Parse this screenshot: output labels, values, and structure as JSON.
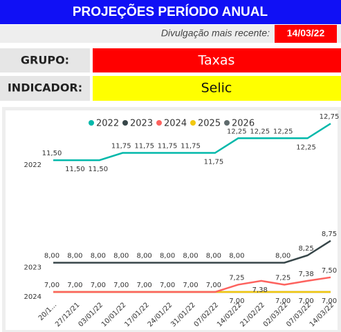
{
  "header": {
    "title": "PROJEÇÕES PERÍODO ANUAL"
  },
  "release": {
    "label": "Divulgação mais recente:",
    "date": "14/03/22"
  },
  "grupo": {
    "label": "GRUPO:",
    "value": "Taxas"
  },
  "indicador": {
    "label": "INDICADOR:",
    "value": "Selic"
  },
  "chart_data": {
    "type": "line",
    "categories": [
      "20/1...",
      "27/12/21",
      "03/01/22",
      "10/01/22",
      "17/01/22",
      "24/01/22",
      "31/01/22",
      "07/02/22",
      "14/02/22",
      "21/02/22",
      "02/03/22",
      "07/03/22",
      "14/03/22"
    ],
    "ylim": [
      6.6,
      13.2
    ],
    "series": [
      {
        "name": "2022",
        "color": "#01b8aa",
        "values": [
          11.5,
          11.5,
          11.5,
          11.75,
          11.75,
          11.75,
          11.75,
          11.75,
          12.25,
          12.25,
          12.25,
          12.25,
          12.75
        ],
        "value_labels": [
          "11,50",
          "11,50",
          "11,50",
          "11,75",
          "11,75",
          "11,75",
          "11,75",
          "11,75",
          "12,25",
          "12,25",
          "12,25",
          "12,25",
          "12,75"
        ]
      },
      {
        "name": "2023",
        "color": "#374649",
        "values": [
          8,
          8,
          8,
          8,
          8,
          8,
          8,
          8,
          8,
          8,
          8,
          8.25,
          8.75
        ],
        "value_labels": [
          "8,00",
          "8,00",
          "8,00",
          "8,00",
          "8,00",
          "8,00",
          "8,00",
          "8,00",
          "8,00",
          null,
          "8,00",
          "8,25",
          "8,75"
        ]
      },
      {
        "name": "2024",
        "color": "#fd625e",
        "values": [
          7,
          7,
          7,
          7,
          7,
          7,
          7,
          7,
          7.25,
          7.38,
          7.25,
          7.38,
          7.5
        ],
        "value_labels": [
          "7,00",
          "7,00",
          "7,00",
          "7,00",
          "7,00",
          "7,00",
          "7,00",
          "7,00",
          "7,25",
          "7,38",
          "7,25",
          "7,38",
          "7,50"
        ]
      },
      {
        "name": "2025",
        "color": "#f2c80f",
        "values": [
          7,
          7,
          7,
          7,
          7,
          7,
          7,
          7,
          7,
          7,
          7,
          7,
          7
        ],
        "value_labels": [
          null,
          null,
          null,
          null,
          null,
          null,
          null,
          null,
          "7,00",
          null,
          "7,00",
          "7,00",
          "7,00"
        ]
      },
      {
        "name": "2026",
        "color": "#5f6b6d",
        "values": [
          7,
          7,
          7,
          7,
          7,
          7,
          7,
          7,
          7,
          7,
          7,
          7,
          7
        ]
      }
    ]
  }
}
